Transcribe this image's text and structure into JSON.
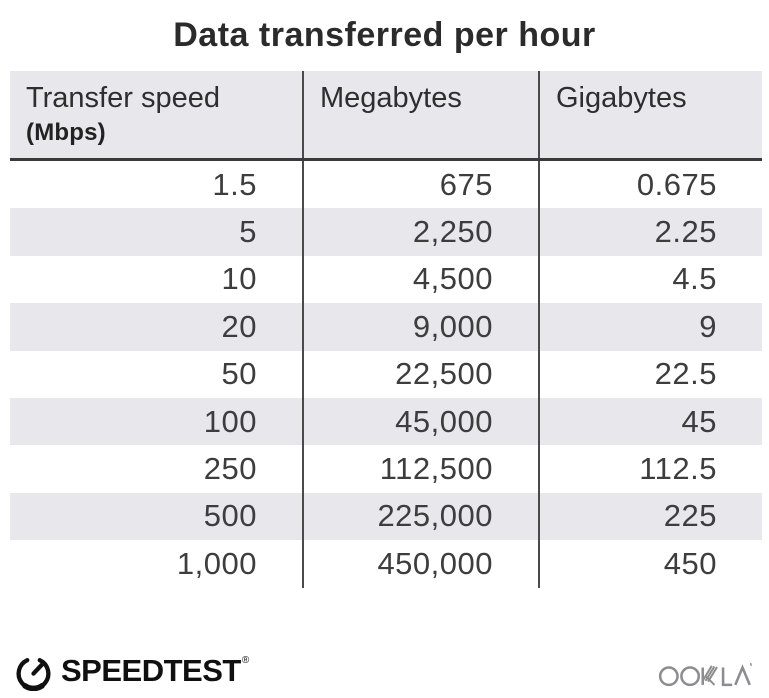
{
  "title": "Data transferred per hour",
  "table": {
    "columns": [
      {
        "label": "Transfer speed",
        "sublabel": "(Mbps)"
      },
      {
        "label": "Megabytes",
        "sublabel": ""
      },
      {
        "label": "Gigabytes",
        "sublabel": ""
      }
    ],
    "rows": [
      [
        "1.5",
        "675",
        "0.675"
      ],
      [
        "5",
        "2,250",
        "2.25"
      ],
      [
        "10",
        "4,500",
        "4.5"
      ],
      [
        "20",
        "9,000",
        "9"
      ],
      [
        "50",
        "22,500",
        "22.5"
      ],
      [
        "100",
        "45,000",
        "45"
      ],
      [
        "250",
        "112,500",
        "112.5"
      ],
      [
        "500",
        "225,000",
        "225"
      ],
      [
        "1,000",
        "450,000",
        "450"
      ]
    ]
  },
  "footer": {
    "speedtest_label": "SPEEDTEST",
    "speedtest_trademark": "®",
    "ookla_label": "OOKLA"
  },
  "colors": {
    "stripe_bg": "#e8e7eb",
    "header_bg": "#e8e7eb",
    "header_border": "#3a3a3a",
    "divider": "#4a4a4a",
    "title_text": "#2b2b2b",
    "body_text": "#3d3d3d",
    "logo_black": "#101010",
    "ookla_gray": "#8d8c90"
  },
  "chart_data": {
    "type": "table",
    "title": "Data transferred per hour",
    "columns": [
      "Transfer speed (Mbps)",
      "Megabytes",
      "Gigabytes"
    ],
    "rows": [
      [
        1.5,
        675,
        0.675
      ],
      [
        5,
        2250,
        2.25
      ],
      [
        10,
        4500,
        4.5
      ],
      [
        20,
        9000,
        9
      ],
      [
        50,
        22500,
        22.5
      ],
      [
        100,
        45000,
        45
      ],
      [
        250,
        112500,
        112.5
      ],
      [
        500,
        225000,
        225
      ],
      [
        1000,
        450000,
        450
      ]
    ],
    "notes": "Rows alternate white / light-gray stripes; values right-aligned; branding: Speedtest by Ookla"
  }
}
